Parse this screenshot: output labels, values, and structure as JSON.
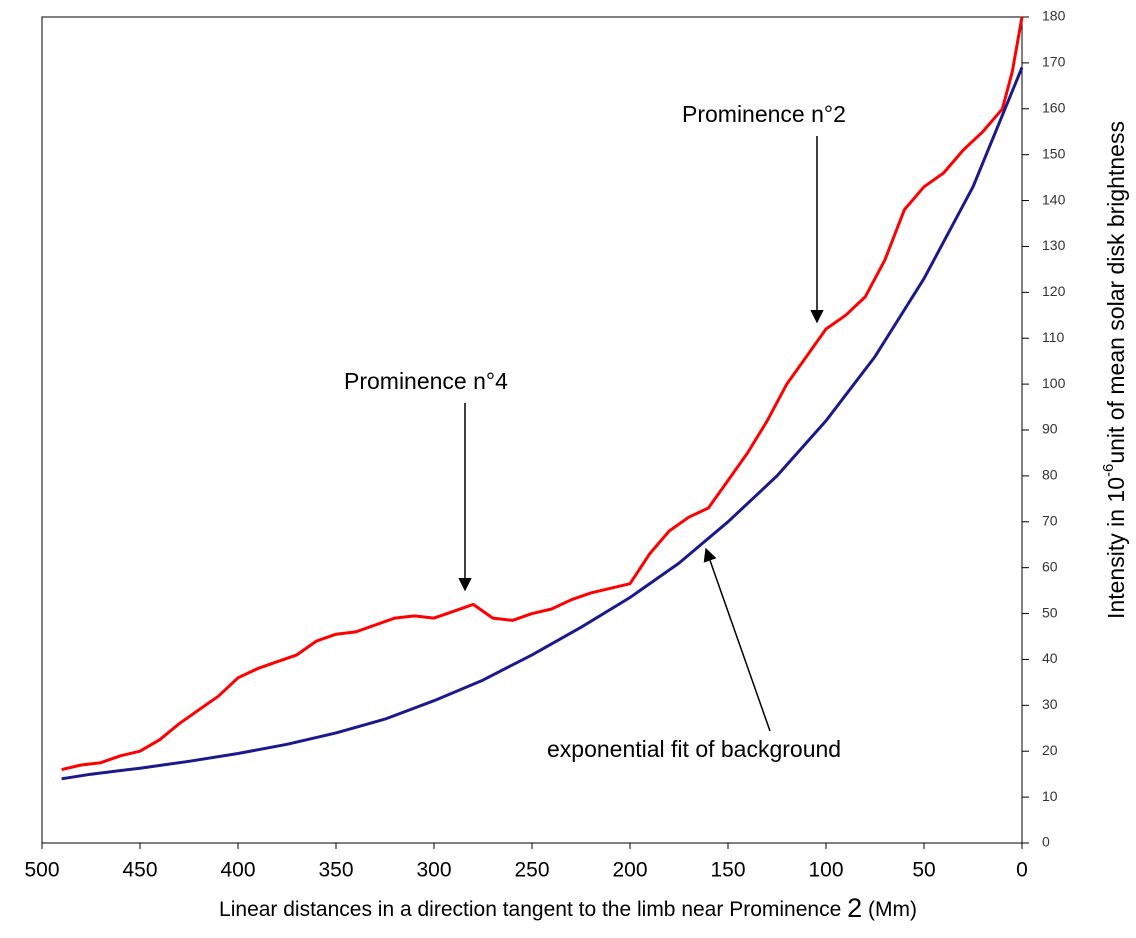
{
  "chart_data": {
    "type": "line",
    "x_label": [
      "Linear distances in a direction tangent to the limb near Prominence",
      "2",
      "(Mm)"
    ],
    "y_label": [
      "Intensity in 10",
      "-6",
      "unit of mean solar disk brightness"
    ],
    "xlim": [
      500,
      0
    ],
    "xticks": [
      500,
      450,
      400,
      350,
      300,
      250,
      200,
      150,
      100,
      50,
      0
    ],
    "ylim": [
      0,
      180
    ],
    "yticks": [
      0,
      10,
      20,
      30,
      40,
      50,
      60,
      70,
      80,
      90,
      100,
      110,
      120,
      130,
      140,
      150,
      160,
      170,
      180
    ],
    "y_axis_side": "right",
    "grid": false,
    "series": [
      {
        "color": "#ff0000",
        "x": [
          490,
          480,
          470,
          460,
          450,
          440,
          430,
          420,
          410,
          400,
          390,
          380,
          370,
          360,
          350,
          340,
          330,
          320,
          310,
          300,
          290,
          280,
          270,
          260,
          250,
          240,
          230,
          220,
          210,
          200,
          190,
          180,
          170,
          160,
          150,
          140,
          130,
          120,
          110,
          100,
          90,
          80,
          70,
          60,
          50,
          40,
          30,
          20,
          10,
          5,
          0
        ],
        "values": [
          16,
          17,
          17.5,
          19,
          20,
          22.5,
          26,
          29,
          32,
          36,
          38,
          39.5,
          41,
          44,
          45.5,
          46,
          47.5,
          49,
          49.5,
          49,
          50.5,
          52,
          49,
          48.5,
          50,
          51,
          53,
          54.5,
          55.5,
          56.5,
          63,
          68,
          71,
          73,
          79,
          85,
          92,
          100,
          106,
          112,
          115,
          119,
          127,
          138,
          143,
          146,
          151,
          155,
          160,
          168,
          180
        ]
      },
      {
        "color": "#1a1a8c",
        "x": [
          490,
          475,
          450,
          425,
          400,
          375,
          350,
          325,
          300,
          275,
          250,
          225,
          200,
          175,
          150,
          125,
          100,
          75,
          50,
          25,
          0
        ],
        "values": [
          14,
          15,
          16.3,
          17.8,
          19.5,
          21.5,
          24,
          27,
          31,
          35.5,
          41,
          47,
          53.5,
          61,
          70,
          80,
          92,
          106,
          123,
          143,
          169
        ]
      }
    ],
    "annotations": [
      {
        "text": "Prominence n°2"
      },
      {
        "text": "Prominence n°4"
      },
      {
        "text": "exponential fit of background"
      }
    ]
  }
}
